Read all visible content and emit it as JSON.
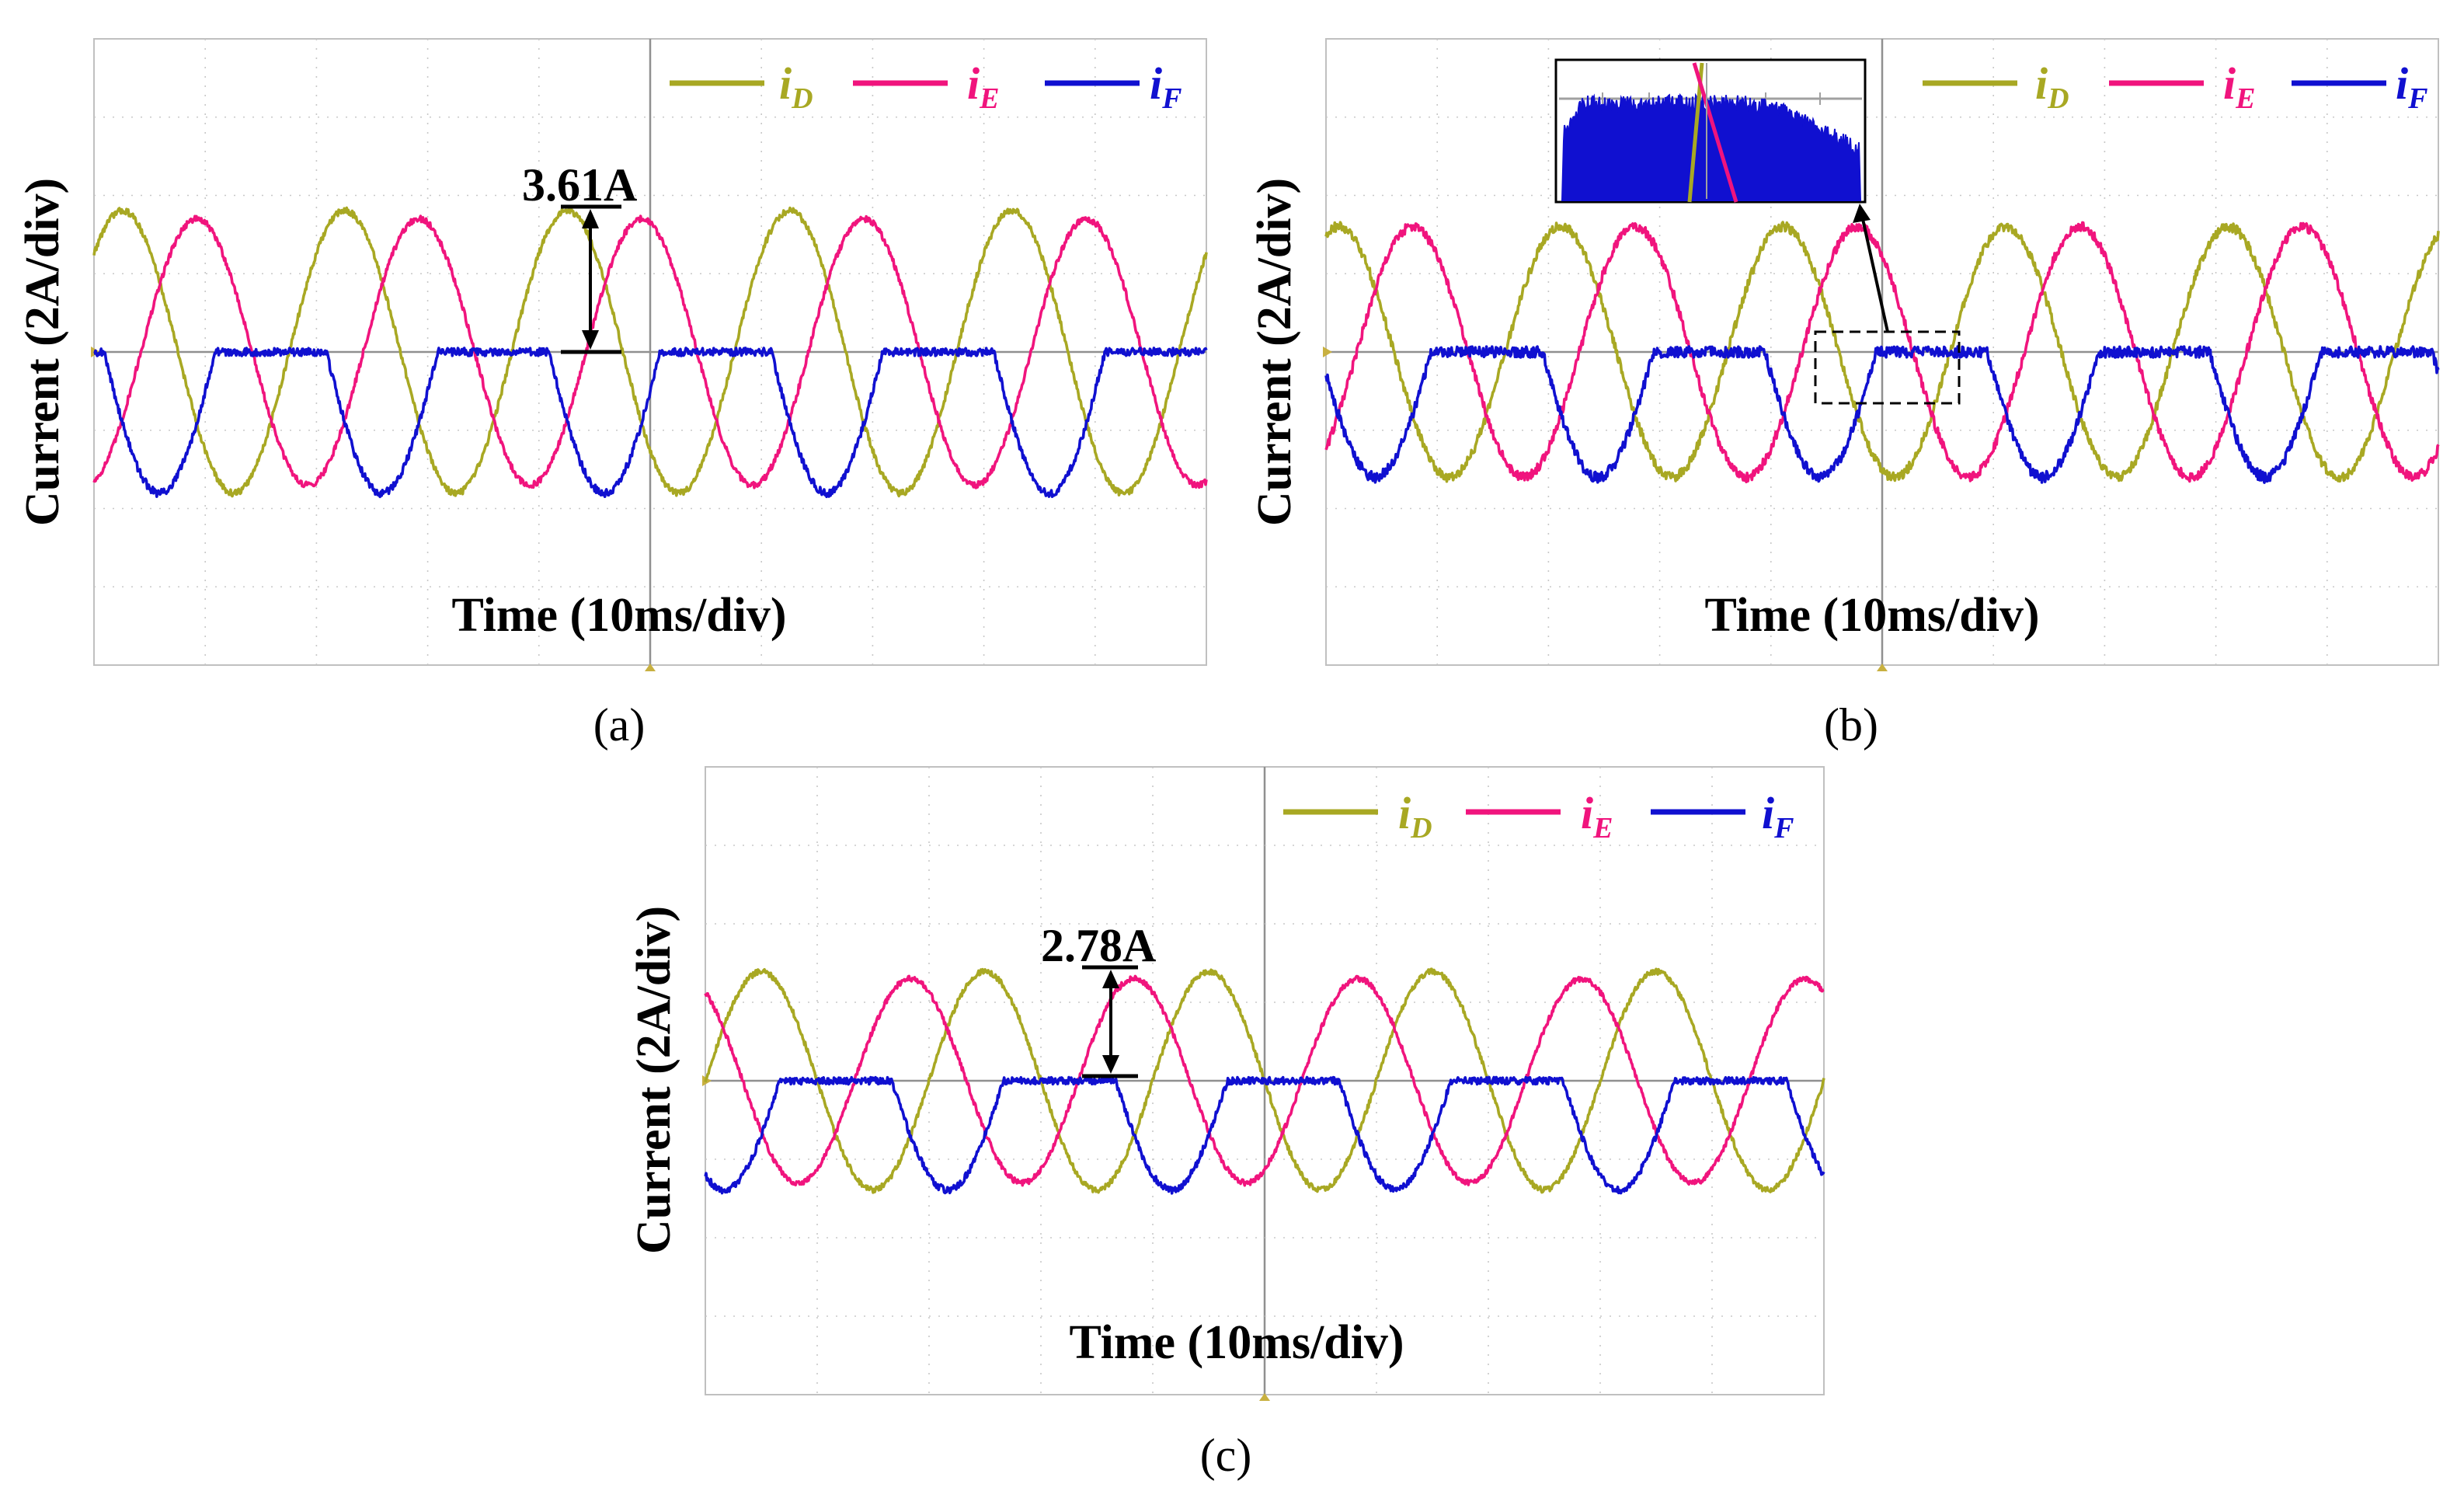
{
  "figure": {
    "panels": [
      {
        "caption": "(a)",
        "ylabel": "Current (2A/div)",
        "xlabel": "Time (10ms/div)",
        "legend": [
          {
            "symbol": "i",
            "sub": "D",
            "color": "#a8a823"
          },
          {
            "symbol": "i",
            "sub": "E",
            "color": "#f0147d"
          },
          {
            "symbol": "i",
            "sub": "F",
            "color": "#1010d0"
          }
        ],
        "annotation": "3.61A"
      },
      {
        "caption": "(b)",
        "ylabel": "Current (2A/div)",
        "xlabel": "Time (10ms/div)",
        "legend": [
          {
            "symbol": "i",
            "sub": "D",
            "color": "#a8a823"
          },
          {
            "symbol": "i",
            "sub": "E",
            "color": "#f0147d"
          },
          {
            "symbol": "i",
            "sub": "F",
            "color": "#1010d0"
          }
        ],
        "annotation": ""
      },
      {
        "caption": "(c)",
        "ylabel": "Current (2A/div)",
        "xlabel": "Time (10ms/div)",
        "legend": [
          {
            "symbol": "i",
            "sub": "D",
            "color": "#a8a823"
          },
          {
            "symbol": "i",
            "sub": "E",
            "color": "#f0147d"
          },
          {
            "symbol": "i",
            "sub": "F",
            "color": "#1010d0"
          }
        ],
        "annotation": "2.78A"
      }
    ]
  },
  "chart_data": [
    {
      "type": "line",
      "title": "(a)",
      "xlabel": "Time (10ms/div)",
      "ylabel": "Current (2A/div)",
      "xlim": [
        0,
        100
      ],
      "ylim": [
        -8,
        8
      ],
      "grid": true,
      "legend_position": "top-right",
      "annotation": {
        "label": "3.61A",
        "at_ms": 44,
        "from": 0,
        "to": 3.61
      },
      "series": [
        {
          "name": "iD",
          "waveform": "sine",
          "period_ms": 20,
          "amplitude": 3.61,
          "phase_deg": 44,
          "noise": 0.08
        },
        {
          "name": "iE",
          "waveform": "sine",
          "period_ms": 20,
          "amplitude": 3.4,
          "phase_deg": -76,
          "noise": 0.08
        },
        {
          "name": "iF",
          "waveform": "clipped_sine",
          "period_ms": 20,
          "amplitude": 3.61,
          "phase_deg": 164,
          "clip_max": 0,
          "noise": 0.1
        }
      ]
    },
    {
      "type": "line",
      "title": "(b)",
      "xlabel": "Time (10ms/div)",
      "ylabel": "Current (2A/div)",
      "xlim": [
        0,
        100
      ],
      "ylim": [
        -8,
        8
      ],
      "grid": true,
      "legend_position": "top-right",
      "inset": "zoom of iF flat segment",
      "series": [
        {
          "name": "iD",
          "waveform": "sine",
          "period_ms": 20,
          "amplitude": 3.2,
          "phase_deg": 70,
          "noise": 0.12
        },
        {
          "name": "iE",
          "waveform": "sine",
          "period_ms": 20,
          "amplitude": 3.2,
          "phase_deg": -50,
          "noise": 0.12
        },
        {
          "name": "iF",
          "waveform": "clipped_sine",
          "period_ms": 20,
          "amplitude": 3.2,
          "phase_deg": 190,
          "clip_max": 0,
          "noise": 0.14
        }
      ]
    },
    {
      "type": "line",
      "title": "(c)",
      "xlabel": "Time (10ms/div)",
      "ylabel": "Current (2A/div)",
      "xlim": [
        0,
        100
      ],
      "ylim": [
        -8,
        8
      ],
      "grid": true,
      "legend_position": "top-right",
      "annotation": {
        "label": "2.78A",
        "at_ms": 36,
        "from": 0,
        "to": 2.78
      },
      "series": [
        {
          "name": "iD",
          "waveform": "sine",
          "period_ms": 20,
          "amplitude": 2.78,
          "phase_deg": 0,
          "noise": 0.07
        },
        {
          "name": "iE",
          "waveform": "sine",
          "period_ms": 20,
          "amplitude": 2.6,
          "phase_deg": 120,
          "noise": 0.07
        },
        {
          "name": "iF",
          "waveform": "clipped_sine",
          "period_ms": 20,
          "amplitude": 2.78,
          "phase_deg": 240,
          "clip_max": 0,
          "noise": 0.09
        }
      ]
    }
  ]
}
